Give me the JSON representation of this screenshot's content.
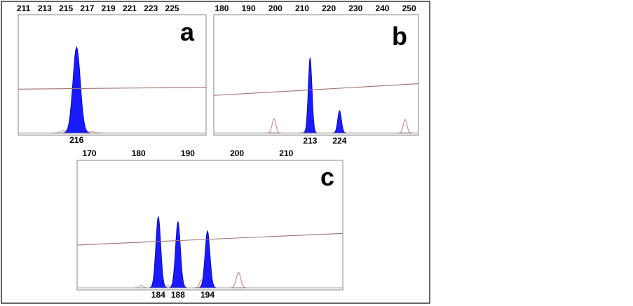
{
  "chart_data": [
    {
      "type": "line",
      "panel": "a",
      "title": "",
      "xlabel": "",
      "ylabel": "",
      "xlim": [
        210.5,
        228.2
      ],
      "ylim": [
        0,
        1
      ],
      "grid": false,
      "ticks": [
        "211",
        "213",
        "215",
        "217",
        "219",
        "221",
        "223",
        "225"
      ],
      "tick_values": [
        211,
        213,
        215,
        217,
        219,
        221,
        223,
        225
      ],
      "baseline": [
        [
          210.5,
          0.49
        ],
        [
          228.2,
          0.51
        ]
      ],
      "peaks": [
        {
          "x": 216,
          "height": 0.96,
          "width": 0.35,
          "color": "#1a1aff",
          "label": "216"
        }
      ],
      "minor_peaks": [
        {
          "x": 214.8,
          "height": 0.03,
          "width": 0.3,
          "color": "#d8b0b0"
        },
        {
          "x": 217.4,
          "height": 0.02,
          "width": 0.3,
          "color": "#d8b0b0"
        }
      ]
    },
    {
      "type": "line",
      "panel": "b",
      "title": "",
      "xlabel": "",
      "ylabel": "",
      "xlim": [
        177,
        253.5
      ],
      "ylim": [
        0,
        1
      ],
      "grid": false,
      "ticks": [
        "180",
        "190",
        "200",
        "210",
        "220",
        "230",
        "240",
        "250"
      ],
      "tick_values": [
        180,
        190,
        200,
        210,
        220,
        230,
        240,
        250
      ],
      "baseline": [
        [
          177,
          0.42
        ],
        [
          253.5,
          0.55
        ]
      ],
      "peaks": [
        {
          "x": 213,
          "height": 0.84,
          "width": 0.7,
          "color": "#1a1aff",
          "label": "213"
        },
        {
          "x": 224,
          "height": 0.25,
          "width": 0.7,
          "color": "#1a1aff",
          "label": "224"
        }
      ],
      "minor_peaks": [
        {
          "x": 199.5,
          "height": 0.16,
          "width": 0.7,
          "color": "#c89090"
        },
        {
          "x": 211.5,
          "height": 0.03,
          "width": 0.7,
          "color": "#d8b0b0"
        },
        {
          "x": 248.5,
          "height": 0.15,
          "width": 0.7,
          "color": "#c89090"
        }
      ]
    },
    {
      "type": "line",
      "panel": "c",
      "title": "",
      "xlabel": "",
      "ylabel": "",
      "xlim": [
        167.5,
        221.5
      ],
      "ylim": [
        0,
        1
      ],
      "grid": false,
      "ticks": [
        "170",
        "180",
        "190",
        "200",
        "210"
      ],
      "tick_values": [
        170,
        180,
        190,
        200,
        210
      ],
      "baseline": [
        [
          167.5,
          0.33
        ],
        [
          221.5,
          0.42
        ]
      ],
      "peaks": [
        {
          "x": 184,
          "height": 0.55,
          "width": 0.5,
          "color": "#1a1aff",
          "label": "184"
        },
        {
          "x": 188,
          "height": 0.51,
          "width": 0.5,
          "color": "#1a1aff",
          "label": "188"
        },
        {
          "x": 194,
          "height": 0.44,
          "width": 0.5,
          "color": "#1a1aff",
          "label": "194"
        }
      ],
      "minor_peaks": [
        {
          "x": 180.5,
          "height": 0.02,
          "width": 0.4,
          "color": "#d8b0b0"
        },
        {
          "x": 186.0,
          "height": 0.02,
          "width": 0.4,
          "color": "#d8b0b0"
        },
        {
          "x": 192.8,
          "height": 0.06,
          "width": 0.4,
          "color": "#c89090"
        },
        {
          "x": 200.3,
          "height": 0.12,
          "width": 0.45,
          "color": "#c89090"
        }
      ]
    }
  ]
}
